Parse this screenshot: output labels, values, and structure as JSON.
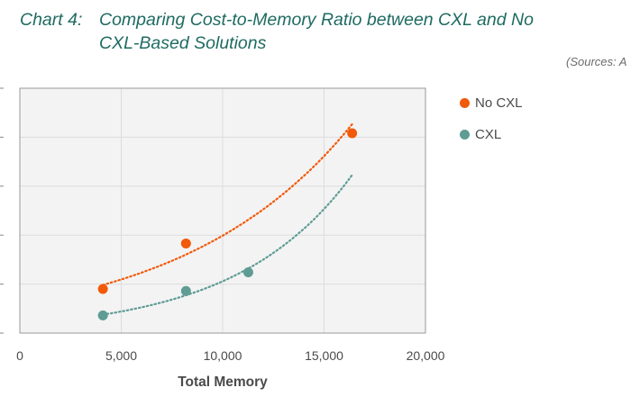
{
  "title": {
    "label": "Chart 4:",
    "text": "Comparing Cost-to-Memory Ratio between CXL and No CXL-Based Solutions"
  },
  "source_note": "(Sources: A",
  "colors": {
    "title": "#1f6b62",
    "no_cxl": "#f15a0b",
    "cxl": "#5e9c94",
    "plot_bg": "#f3f3f3",
    "grid": "#dcdcdc",
    "axis_text": "#4a4a4a"
  },
  "legend": [
    {
      "label": "No CXL",
      "series": 0
    },
    {
      "label": "CXL",
      "series": 1
    }
  ],
  "chart_data": {
    "type": "scatter",
    "title": "Comparing Cost-to-Memory Ratio between CXL and No CXL-Based Solutions",
    "xlabel": "Total Memory",
    "ylabel": "",
    "xlim": [
      0,
      20000
    ],
    "ylim": [
      0,
      5
    ],
    "x_ticks": [
      0,
      5000,
      10000,
      15000,
      20000
    ],
    "x_tick_labels": [
      "0",
      "5,000",
      "10,000",
      "15,000",
      "20,000"
    ],
    "y_ticks": [
      0,
      1,
      2,
      3,
      4,
      5
    ],
    "grid": true,
    "legend_position": "right",
    "trendline": "exponential, dotted",
    "series": [
      {
        "name": "No CXL",
        "color": "#f15a0b",
        "points": [
          [
            4096,
            0.9
          ],
          [
            8192,
            1.83
          ],
          [
            16384,
            4.08
          ]
        ]
      },
      {
        "name": "CXL",
        "color": "#5e9c94",
        "points": [
          [
            4096,
            0.36
          ],
          [
            8192,
            0.86
          ],
          [
            11264,
            1.24
          ]
        ]
      }
    ]
  }
}
